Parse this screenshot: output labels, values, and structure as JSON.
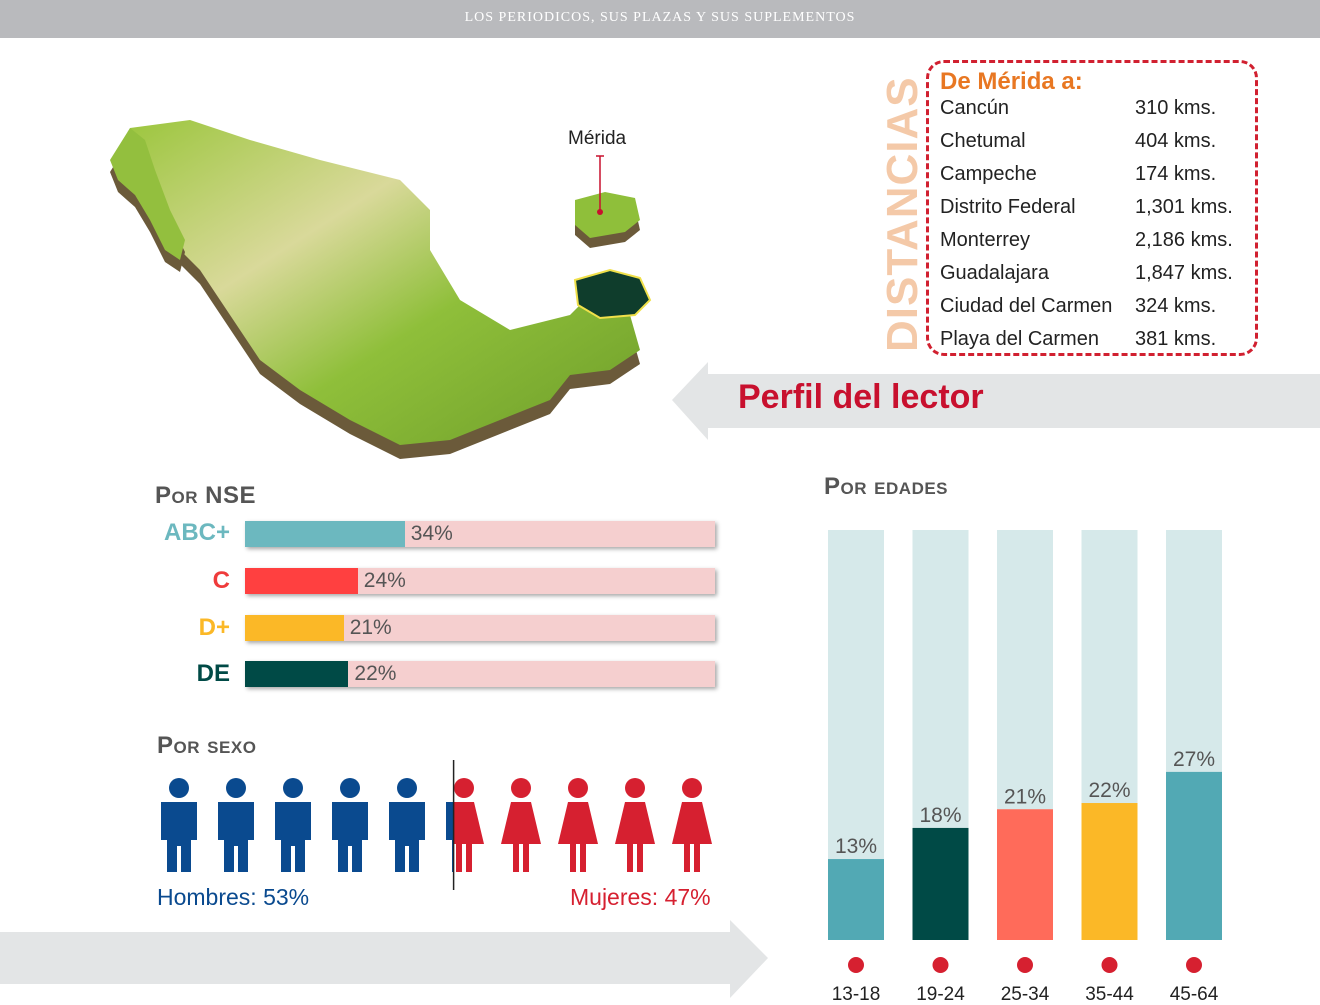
{
  "header": {
    "title": "LOS PERIODICOS, SUS PLAZAS Y SUS SUPLEMENTOS"
  },
  "map": {
    "city_label": "Mérida"
  },
  "distances": {
    "vertical_title": "DISTANCIAS",
    "title": "De Mérida a:",
    "rows": [
      {
        "city": "Cancún",
        "km": "310 kms."
      },
      {
        "city": "Chetumal",
        "km": "404 kms."
      },
      {
        "city": "Campeche",
        "km": "174 kms."
      },
      {
        "city": "Distrito Federal",
        "km": "1,301 kms."
      },
      {
        "city": "Monterrey",
        "km": "2,186 kms."
      },
      {
        "city": "Guadalajara",
        "km": "1,847 kms."
      },
      {
        "city": "Ciudad del Carmen",
        "km": "324 kms."
      },
      {
        "city": "Playa del Carmen",
        "km": "381 kms."
      }
    ]
  },
  "perfil": {
    "label": "Perfil del lector"
  },
  "colors": {
    "teal": "#6cb8bf",
    "red": "#ff4040",
    "yellow": "#fbb827",
    "darkgreen": "#004a46",
    "salmon": "#ff6b5a",
    "agebg": "#d6e9ea",
    "blue": "#0a4a8f",
    "crimson": "#d62030",
    "track": "#f5cfcf"
  },
  "nse": {
    "title": "Por NSE",
    "rows": [
      {
        "label": "ABC+",
        "value": 34,
        "value_label": "34%",
        "color": "#6cb8bf"
      },
      {
        "label": "C",
        "value": 24,
        "value_label": "24%",
        "color": "#ff4040"
      },
      {
        "label": "D+",
        "value": 21,
        "value_label": "21%",
        "color": "#fbb827"
      },
      {
        "label": "DE",
        "value": 22,
        "value_label": "22%",
        "color": "#004a46"
      }
    ]
  },
  "sexo": {
    "title": "Por sexo",
    "hombres_label": "Hombres: 53%",
    "mujeres_label": "Mujeres: 47%",
    "hombres_value": 53,
    "mujeres_value": 47
  },
  "edades": {
    "title": "Por edades"
  },
  "chart_data": [
    {
      "type": "bar",
      "title": "Por NSE",
      "categories": [
        "ABC+",
        "C",
        "D+",
        "DE"
      ],
      "values": [
        34,
        24,
        21,
        22
      ],
      "ylim": [
        0,
        100
      ]
    },
    {
      "type": "bar",
      "title": "Por edades",
      "categories": [
        "13-18",
        "19-24",
        "25-34",
        "35-44",
        "45-64"
      ],
      "values": [
        13,
        18,
        21,
        22,
        27
      ],
      "value_labels": [
        "13%",
        "18%",
        "21%",
        "22%",
        "27%"
      ],
      "colors": [
        "#52a9b4",
        "#004a46",
        "#ff6b5a",
        "#fbb827",
        "#52a9b4"
      ],
      "ylim": [
        0,
        100
      ]
    },
    {
      "type": "pie",
      "title": "Por sexo",
      "categories": [
        "Hombres",
        "Mujeres"
      ],
      "values": [
        53,
        47
      ]
    }
  ]
}
